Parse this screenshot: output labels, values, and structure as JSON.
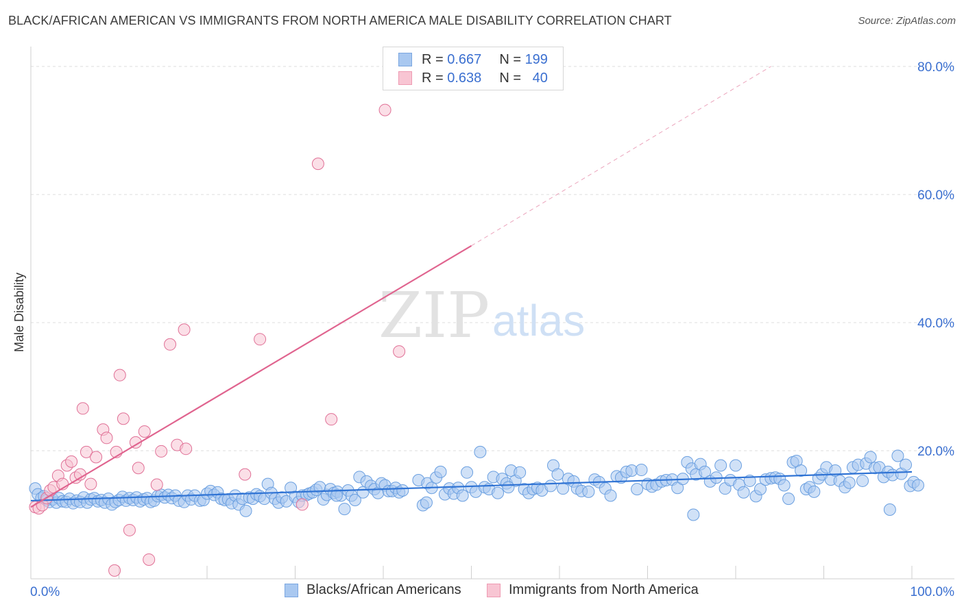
{
  "header": {
    "title": "BLACK/AFRICAN AMERICAN VS IMMIGRANTS FROM NORTH AMERICA MALE DISABILITY CORRELATION CHART",
    "source": "Source: ZipAtlas.com"
  },
  "watermark": {
    "zip": "ZIP",
    "atlas": "atlas"
  },
  "legend_top": {
    "rows": [
      {
        "r_label": "R =",
        "r_value": "0.667",
        "n_label": "N =",
        "n_value": "199",
        "color": "#a9c8f0",
        "border": "#7aa6e0"
      },
      {
        "r_label": "R =",
        "r_value": "0.638",
        "n_label": "N =",
        "n_value": "40",
        "color": "#f8c5d3",
        "border": "#ee9ab2"
      }
    ]
  },
  "legend_bottom": [
    {
      "label": "Blacks/African Americans",
      "color": "#a9c8f0",
      "border": "#7aa6e0"
    },
    {
      "label": "Immigrants from North America",
      "color": "#f8c5d3",
      "border": "#ee9ab2"
    }
  ],
  "chart_data": {
    "type": "scatter",
    "title": "BLACK/AFRICAN AMERICAN VS IMMIGRANTS FROM NORTH AMERICA MALE DISABILITY CORRELATION CHART",
    "xlabel": "",
    "ylabel": "Male Disability",
    "xlim": [
      0,
      100
    ],
    "ylim": [
      0,
      80
    ],
    "x_tick_labels": [
      "0.0%",
      "100.0%"
    ],
    "y_ticks": [
      20,
      40,
      60,
      80
    ],
    "y_tick_labels": [
      "20.0%",
      "40.0%",
      "60.0%",
      "80.0%"
    ],
    "grid": true,
    "legend_position": "top-center",
    "series": [
      {
        "name": "Blacks/African Americans",
        "color": "#6a9fe0",
        "fill": "#a9c8f0",
        "trend": {
          "x": [
            0,
            100
          ],
          "y": [
            12.2,
            16.7
          ]
        },
        "points": [
          [
            0.5,
            14.1
          ],
          [
            0.8,
            13.2
          ],
          [
            1.2,
            12.6
          ],
          [
            1.5,
            12.9
          ],
          [
            1.8,
            12.3
          ],
          [
            2.1,
            12.0
          ],
          [
            2.5,
            12.4
          ],
          [
            2.9,
            11.9
          ],
          [
            3.2,
            12.6
          ],
          [
            3.6,
            12.1
          ],
          [
            4,
            12.0
          ],
          [
            4.4,
            12.5
          ],
          [
            4.8,
            11.8
          ],
          [
            5.2,
            12.2
          ],
          [
            5.6,
            12.0
          ],
          [
            6.0,
            12.7
          ],
          [
            6.4,
            11.9
          ],
          [
            6.8,
            12.4
          ],
          [
            7.2,
            12.6
          ],
          [
            7.6,
            12.1
          ],
          [
            8,
            12.3
          ],
          [
            8.4,
            11.9
          ],
          [
            8.8,
            12.5
          ],
          [
            9.2,
            11.6
          ],
          [
            9.6,
            12.0
          ],
          [
            10,
            12.3
          ],
          [
            10.4,
            12.8
          ],
          [
            10.8,
            12.2
          ],
          [
            11.2,
            12.6
          ],
          [
            11.6,
            12.3
          ],
          [
            12,
            12.7
          ],
          [
            12.4,
            12.1
          ],
          [
            12.8,
            12.4
          ],
          [
            13.2,
            12.6
          ],
          [
            13.6,
            12.0
          ],
          [
            14.0,
            12.2
          ],
          [
            14.4,
            12.9
          ],
          [
            14.8,
            13.1
          ],
          [
            15.2,
            12.7
          ],
          [
            15.6,
            13.1
          ],
          [
            16,
            12.6
          ],
          [
            16.4,
            13.0
          ],
          [
            16.8,
            12.2
          ],
          [
            17.4,
            12.0
          ],
          [
            17.8,
            13.0
          ],
          [
            18.2,
            12.4
          ],
          [
            18.6,
            13.0
          ],
          [
            19.2,
            12.2
          ],
          [
            19.6,
            12.3
          ],
          [
            20,
            13.3
          ],
          [
            20.4,
            13.7
          ],
          [
            20.8,
            13.1
          ],
          [
            21.2,
            13.5
          ],
          [
            21.6,
            12.5
          ],
          [
            22,
            12.3
          ],
          [
            22.4,
            12.4
          ],
          [
            22.8,
            11.8
          ],
          [
            23.2,
            13.0
          ],
          [
            23.6,
            11.6
          ],
          [
            24,
            12.5
          ],
          [
            24.4,
            10.6
          ],
          [
            24.8,
            12.7
          ],
          [
            25.2,
            12.5
          ],
          [
            25.6,
            13.2
          ],
          [
            26,
            12.9
          ],
          [
            26.5,
            12.5
          ],
          [
            26.9,
            14.8
          ],
          [
            27.3,
            13.4
          ],
          [
            27.7,
            12.5
          ],
          [
            28.1,
            11.9
          ],
          [
            28.5,
            12.7
          ],
          [
            29,
            12.1
          ],
          [
            29.5,
            14.2
          ],
          [
            30,
            12.8
          ],
          [
            30.4,
            12.0
          ],
          [
            30.8,
            13.0
          ],
          [
            31.3,
            13.1
          ],
          [
            31.6,
            13.3
          ],
          [
            32,
            13.5
          ],
          [
            32.4,
            13.9
          ],
          [
            32.8,
            14.3
          ],
          [
            33.2,
            12.4
          ],
          [
            33.6,
            13.1
          ],
          [
            34,
            14.0
          ],
          [
            34.4,
            13.4
          ],
          [
            34.8,
            13.6
          ],
          [
            35.2,
            13.0
          ],
          [
            35.6,
            10.9
          ],
          [
            36,
            13.8
          ],
          [
            36.4,
            13.0
          ],
          [
            36.8,
            12.3
          ],
          [
            37.3,
            15.9
          ],
          [
            37.7,
            13.5
          ],
          [
            38.1,
            15.2
          ],
          [
            38.6,
            14.5
          ],
          [
            39,
            14.0
          ],
          [
            39.4,
            13.4
          ],
          [
            39.8,
            14.9
          ],
          [
            40.2,
            14.6
          ],
          [
            40.6,
            13.7
          ],
          [
            41.0,
            13.7
          ],
          [
            41.4,
            14.2
          ],
          [
            41.8,
            13.5
          ],
          [
            42.2,
            13.8
          ],
          [
            44,
            15.4
          ],
          [
            44.5,
            11.5
          ],
          [
            45,
            14.9
          ],
          [
            45.5,
            14.2
          ],
          [
            46,
            15.8
          ],
          [
            46.5,
            16.7
          ],
          [
            47,
            13.2
          ],
          [
            47.5,
            14.1
          ],
          [
            48,
            13.3
          ],
          [
            48.5,
            14.2
          ],
          [
            49,
            13.0
          ],
          [
            49.5,
            16.6
          ],
          [
            50,
            14.3
          ],
          [
            50.5,
            13.6
          ],
          [
            51,
            19.8
          ],
          [
            51.5,
            14.3
          ],
          [
            52,
            14.0
          ],
          [
            52.5,
            15.9
          ],
          [
            53,
            13.4
          ],
          [
            53.5,
            15.6
          ],
          [
            54,
            14.9
          ],
          [
            54.5,
            16.9
          ],
          [
            55,
            15.3
          ],
          [
            55.5,
            16.6
          ],
          [
            56,
            14.0
          ],
          [
            56.5,
            13.4
          ],
          [
            57,
            14.0
          ],
          [
            57.5,
            14.2
          ],
          [
            58,
            13.8
          ],
          [
            59,
            14.5
          ],
          [
            59.3,
            17.7
          ],
          [
            59.8,
            16.3
          ],
          [
            60.4,
            14.1
          ],
          [
            61,
            15.6
          ],
          [
            61.6,
            15.2
          ],
          [
            62,
            14.1
          ],
          [
            62.5,
            13.7
          ],
          [
            63.3,
            13.6
          ],
          [
            64,
            15.5
          ],
          [
            64.5,
            15.1
          ],
          [
            65.2,
            14.1
          ],
          [
            65.8,
            13.0
          ],
          [
            66.5,
            16.0
          ],
          [
            67,
            15.8
          ],
          [
            67.6,
            16.7
          ],
          [
            68.2,
            16.9
          ],
          [
            68.8,
            14.0
          ],
          [
            69.3,
            17.0
          ],
          [
            70,
            14.8
          ],
          [
            70.5,
            14.4
          ],
          [
            71,
            14.7
          ],
          [
            71.6,
            15.2
          ],
          [
            72.1,
            15.4
          ],
          [
            72.8,
            15.5
          ],
          [
            73.4,
            14.2
          ],
          [
            74,
            15.6
          ],
          [
            74.5,
            18.2
          ],
          [
            75,
            17.2
          ],
          [
            75.5,
            16.3
          ],
          [
            76,
            17.9
          ],
          [
            76.5,
            16.7
          ],
          [
            77.1,
            15.2
          ],
          [
            77.8,
            15.8
          ],
          [
            78.3,
            17.7
          ],
          [
            78.8,
            14.1
          ],
          [
            79.4,
            15.4
          ],
          [
            80,
            17.7
          ],
          [
            80.4,
            14.7
          ],
          [
            80.9,
            13.5
          ],
          [
            81.6,
            15.3
          ],
          [
            82.3,
            12.9
          ],
          [
            82.8,
            14.0
          ],
          [
            83.4,
            15.5
          ],
          [
            84,
            15.7
          ],
          [
            84.5,
            15.8
          ],
          [
            85,
            15.6
          ],
          [
            85.5,
            14.6
          ],
          [
            86,
            12.5
          ],
          [
            86.5,
            18.2
          ],
          [
            86.9,
            18.4
          ],
          [
            87.4,
            16.9
          ],
          [
            88,
            14.0
          ],
          [
            88.4,
            14.3
          ],
          [
            88.9,
            13.6
          ],
          [
            89.4,
            15.7
          ],
          [
            89.8,
            16.3
          ],
          [
            90.3,
            17.4
          ],
          [
            90.8,
            15.5
          ],
          [
            91.3,
            16.9
          ],
          [
            91.8,
            15.3
          ],
          [
            92.4,
            14.3
          ],
          [
            92.9,
            15.0
          ],
          [
            93.3,
            17.4
          ],
          [
            93.9,
            17.8
          ],
          [
            94.4,
            15.3
          ],
          [
            94.8,
            18.0
          ],
          [
            95.3,
            19.0
          ],
          [
            95.8,
            17.3
          ],
          [
            96.3,
            17.4
          ],
          [
            96.8,
            15.9
          ],
          [
            97.3,
            16.7
          ],
          [
            97.8,
            16.2
          ],
          [
            98.4,
            19.2
          ],
          [
            98.8,
            16.4
          ],
          [
            99.3,
            17.8
          ],
          [
            99.8,
            14.5
          ],
          [
            100.2,
            15.1
          ],
          [
            100.7,
            14.6
          ],
          [
            97.5,
            10.8
          ],
          [
            75.2,
            10.0
          ],
          [
            54.2,
            14.3
          ],
          [
            44.9,
            11.9
          ],
          [
            34.7,
            13.0
          ]
        ]
      },
      {
        "name": "Immigrants from North America",
        "color": "#e07096",
        "fill": "#f8c5d3",
        "trend": {
          "x": [
            0,
            50
          ],
          "y": [
            11.2,
            52.0
          ]
        },
        "trend_dashed": {
          "x": [
            50,
            84
          ],
          "y": [
            52.0,
            80.0
          ]
        },
        "points": [
          [
            0.5,
            11.2
          ],
          [
            0.9,
            11.0
          ],
          [
            1.3,
            11.5
          ],
          [
            1.8,
            12.6
          ],
          [
            2.2,
            13.8
          ],
          [
            2.6,
            14.3
          ],
          [
            3.1,
            16.1
          ],
          [
            3.6,
            14.8
          ],
          [
            4.1,
            17.7
          ],
          [
            4.6,
            18.3
          ],
          [
            5.1,
            15.8
          ],
          [
            5.6,
            16.3
          ],
          [
            5.9,
            26.6
          ],
          [
            6.3,
            19.8
          ],
          [
            6.8,
            14.8
          ],
          [
            7.4,
            19.0
          ],
          [
            8.2,
            23.3
          ],
          [
            8.6,
            22.0
          ],
          [
            9.5,
            1.3
          ],
          [
            9.7,
            19.8
          ],
          [
            10.1,
            31.8
          ],
          [
            10.5,
            25.0
          ],
          [
            11.2,
            7.6
          ],
          [
            11.9,
            21.3
          ],
          [
            12.2,
            17.3
          ],
          [
            12.9,
            23.0
          ],
          [
            13.4,
            3.0
          ],
          [
            14.3,
            14.7
          ],
          [
            14.8,
            19.9
          ],
          [
            15.8,
            36.6
          ],
          [
            16.6,
            20.9
          ],
          [
            17.4,
            38.9
          ],
          [
            17.6,
            20.3
          ],
          [
            24.3,
            16.3
          ],
          [
            26.0,
            37.4
          ],
          [
            30.8,
            11.6
          ],
          [
            32.6,
            64.8
          ],
          [
            34.1,
            24.9
          ],
          [
            40.2,
            73.2
          ],
          [
            41.8,
            35.5
          ]
        ]
      }
    ]
  }
}
